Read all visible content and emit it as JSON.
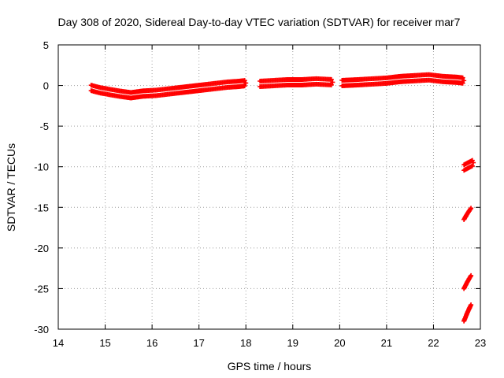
{
  "chart_data": {
    "type": "scatter",
    "title": "Day 308 of 2020, Sidereal Day-to-day VTEC variation (SDTVAR) for receiver mar7",
    "xlabel": "GPS time / hours",
    "ylabel": "SDTVAR / TECUs",
    "xlim": [
      14,
      23
    ],
    "ylim": [
      -30,
      5
    ],
    "x_ticks": [
      14,
      15,
      16,
      17,
      18,
      19,
      20,
      21,
      22,
      23
    ],
    "y_ticks": [
      5,
      0,
      -5,
      -10,
      -15,
      -20,
      -25,
      -30
    ],
    "x_tick_labels": [
      "14",
      "15",
      "16",
      "17",
      "18",
      "19",
      "20",
      "21",
      "22",
      "23"
    ],
    "y_tick_labels": [
      "5",
      "0",
      "-5",
      "-10",
      "-15",
      "-20",
      "-25",
      "-30"
    ],
    "grid": true,
    "legend": "none",
    "marker": "plus",
    "color": "#ff0000",
    "series": [
      {
        "points": [
          [
            14.7,
            -0.3
          ],
          [
            14.9,
            -0.6
          ],
          [
            15.1,
            -0.8
          ],
          [
            15.3,
            -1.0
          ],
          [
            15.55,
            -1.2
          ],
          [
            15.8,
            -1.0
          ],
          [
            16.1,
            -0.9
          ],
          [
            16.4,
            -0.7
          ],
          [
            16.7,
            -0.5
          ],
          [
            17.0,
            -0.3
          ],
          [
            17.3,
            -0.1
          ],
          [
            17.6,
            0.1
          ],
          [
            17.85,
            0.2
          ],
          [
            18.0,
            0.3
          ]
        ]
      },
      {
        "points": [
          [
            18.3,
            0.2
          ],
          [
            18.6,
            0.3
          ],
          [
            18.9,
            0.4
          ],
          [
            19.2,
            0.4
          ],
          [
            19.5,
            0.5
          ],
          [
            19.85,
            0.4
          ]
        ]
      },
      {
        "points": [
          [
            20.05,
            0.3
          ],
          [
            20.4,
            0.4
          ],
          [
            20.7,
            0.5
          ],
          [
            21.0,
            0.6
          ],
          [
            21.3,
            0.8
          ],
          [
            21.6,
            0.9
          ],
          [
            21.9,
            1.0
          ],
          [
            22.2,
            0.8
          ],
          [
            22.5,
            0.7
          ],
          [
            22.65,
            0.6
          ]
        ]
      },
      {
        "points": [
          [
            22.65,
            -10.1
          ],
          [
            22.75,
            -9.8
          ],
          [
            22.85,
            -9.5
          ]
        ]
      },
      {
        "points": [
          [
            22.65,
            -16.5
          ],
          [
            22.72,
            -15.8
          ],
          [
            22.8,
            -15.1
          ]
        ]
      },
      {
        "points": [
          [
            22.65,
            -25.0
          ],
          [
            22.72,
            -24.2
          ],
          [
            22.8,
            -23.4
          ]
        ]
      },
      {
        "points": [
          [
            22.65,
            -29.0
          ],
          [
            22.72,
            -28.0
          ],
          [
            22.8,
            -27.0
          ]
        ]
      }
    ]
  }
}
